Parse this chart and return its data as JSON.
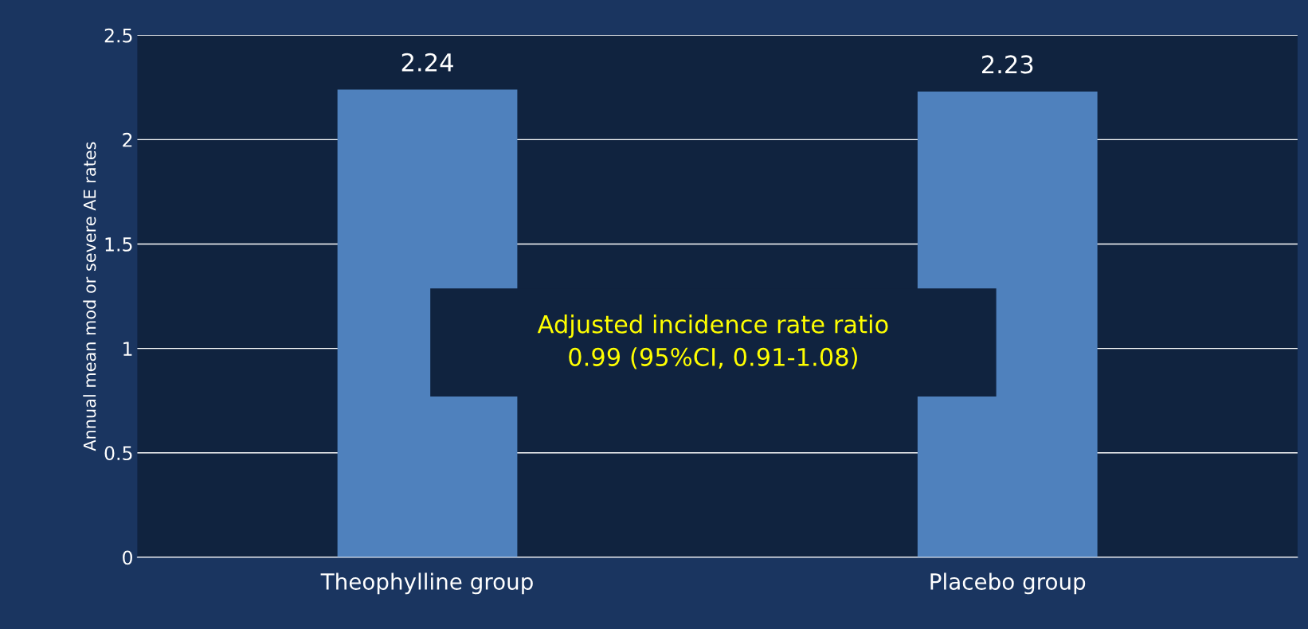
{
  "chart_data": {
    "type": "bar",
    "categories": [
      "Theophylline group",
      "Placebo group"
    ],
    "values": [
      2.24,
      2.23
    ],
    "color": "#4f81bd",
    "data_labels": true,
    "ylabel": "Annual mean mod or severe AE rates",
    "ylim": [
      0,
      2.5
    ],
    "yticks": [
      0,
      0.5,
      1,
      1.5,
      2,
      2.5
    ],
    "grid": "y",
    "annotations": [
      "Adjusted incidence rate ratio\n0.99 (95%CI, 0.91-1.08)"
    ]
  }
}
